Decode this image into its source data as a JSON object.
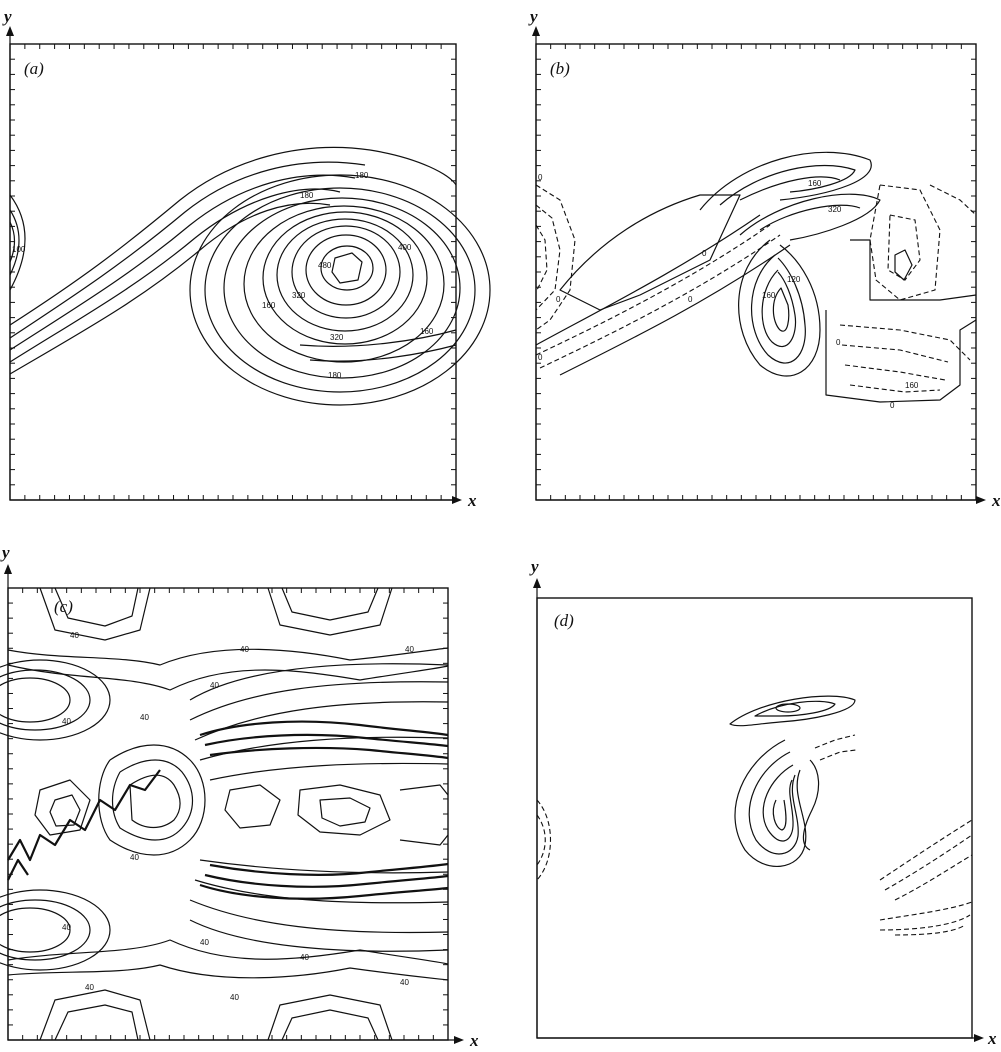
{
  "panels": [
    {
      "id": "a",
      "label": "(a)",
      "xlabel": "x",
      "ylabel": "y",
      "contour_labels": [
        "180",
        "100",
        "180",
        "160",
        "320",
        "480",
        "400",
        "320",
        "160",
        "180"
      ]
    },
    {
      "id": "b",
      "label": "(b)",
      "xlabel": "x",
      "ylabel": "y",
      "contour_labels": [
        "0",
        "0",
        "160",
        "320",
        "0",
        "0",
        "160",
        "120",
        "0",
        "0",
        "160",
        "0"
      ]
    },
    {
      "id": "c",
      "label": "(c)",
      "xlabel": "x",
      "ylabel": "y",
      "contour_labels": [
        "40",
        "40",
        "40",
        "40",
        "40",
        "40",
        "40",
        "40",
        "40",
        "40",
        "40",
        "40",
        "40"
      ]
    },
    {
      "id": "d",
      "label": "(d)",
      "xlabel": "x",
      "ylabel": "y",
      "contour_labels": []
    }
  ]
}
